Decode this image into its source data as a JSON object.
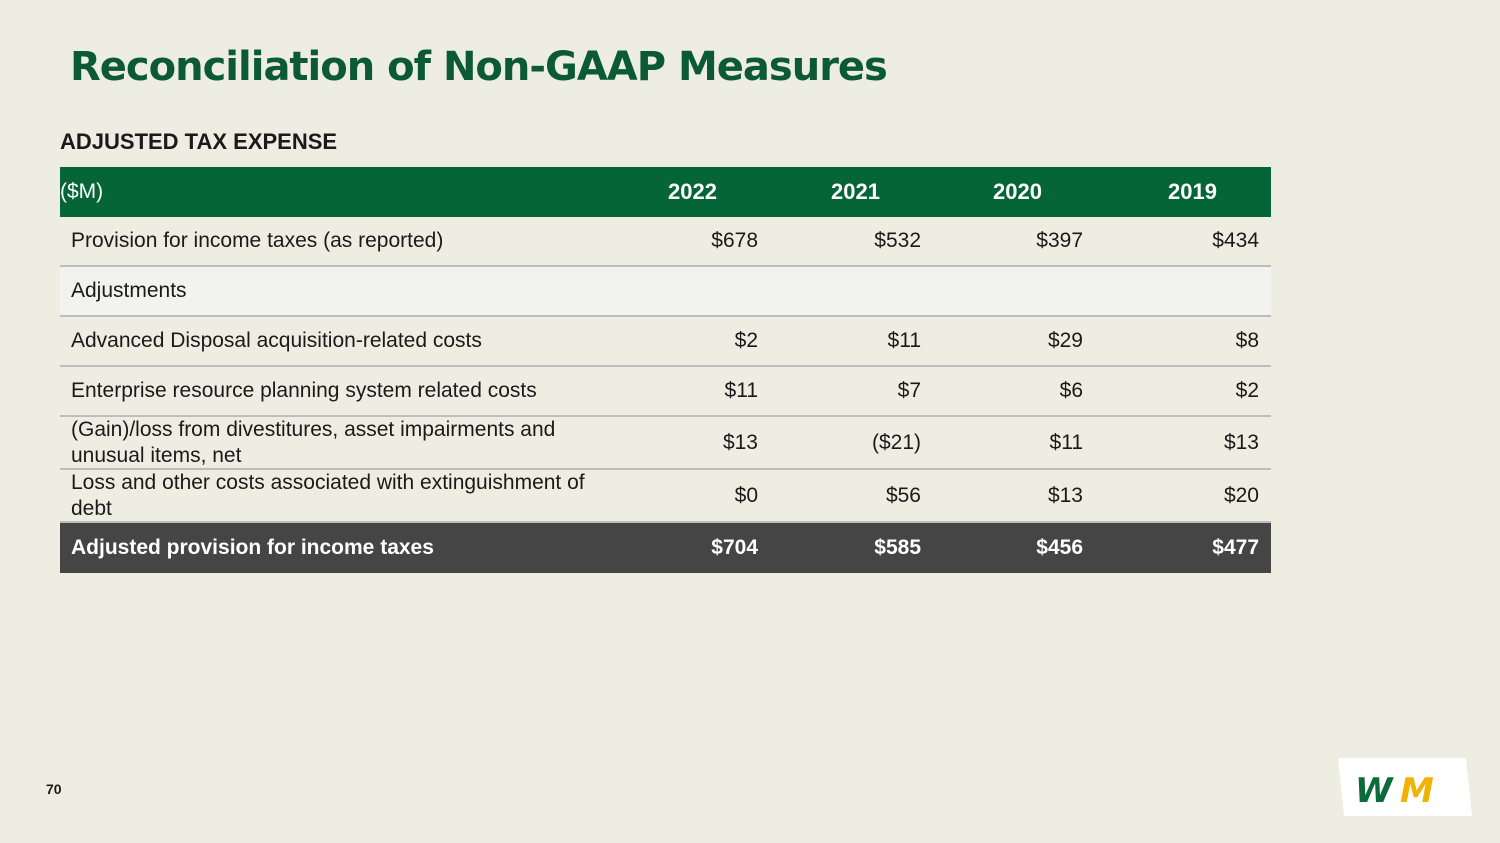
{
  "title": "Reconciliation of Non-GAAP Measures",
  "section_title": "ADJUSTED TAX EXPENSE",
  "table": {
    "header": {
      "unit": "($M)",
      "years": [
        "2022",
        "2021",
        "2020",
        "2019"
      ]
    },
    "rows": [
      {
        "label": "Provision for income taxes (as reported)",
        "values": [
          "$678",
          "$532",
          "$397",
          "$434"
        ]
      },
      {
        "label": "Adjustments",
        "values": [
          "",
          "",
          "",
          ""
        ]
      },
      {
        "label": "Advanced Disposal acquisition-related costs",
        "values": [
          "$2",
          "$11",
          "$29",
          "$8"
        ]
      },
      {
        "label": "Enterprise resource planning system related costs",
        "values": [
          "$11",
          "$7",
          "$6",
          "$2"
        ]
      },
      {
        "label": "(Gain)/loss from divestitures, asset impairments and unusual items, net",
        "values": [
          "$13",
          "($21)",
          "$11",
          "$13"
        ]
      },
      {
        "label": "Loss and other costs associated with extinguishment of debt",
        "values": [
          "$0",
          "$56",
          "$13",
          "$20"
        ]
      }
    ],
    "total": {
      "label": "Adjusted provision for income taxes",
      "values": [
        "$704",
        "$585",
        "$456",
        "$477"
      ]
    }
  },
  "page_number": "70",
  "logo": {
    "text": "WM",
    "colors": {
      "green": "#0b6b3a",
      "yellow": "#f2b300"
    }
  }
}
